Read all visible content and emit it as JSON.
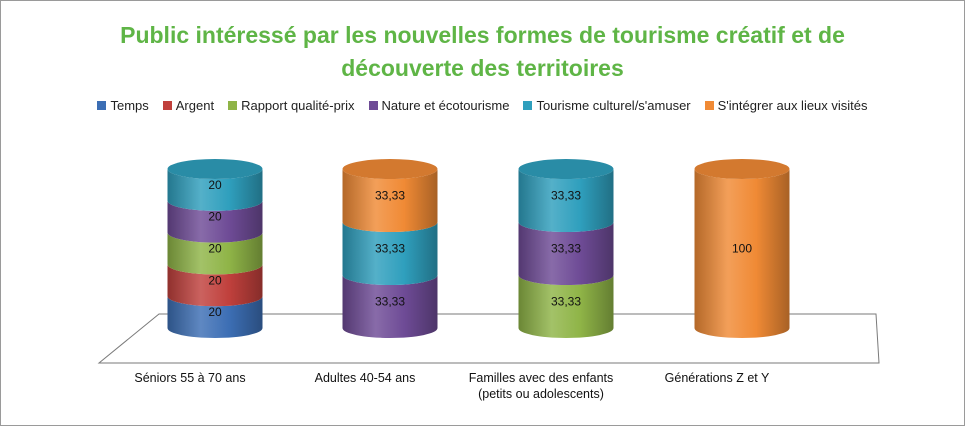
{
  "chart_data": {
    "type": "bar",
    "stacked": true,
    "style": "3d-cylinder",
    "title": "Public intéressé par les nouvelles formes de tourisme créatif et de découverte des territoires",
    "title_lines": [
      "Public intéressé par les nouvelles formes de tourisme créatif et de",
      "découverte des territoires"
    ],
    "legend_position": "top",
    "categories": [
      [
        "Séniors 55 à 70 ans"
      ],
      [
        "Adultes 40-54 ans"
      ],
      [
        "Familles avec des enfants",
        "(petits ou adolescents)"
      ],
      [
        "Générations Z et Y"
      ]
    ],
    "series": [
      {
        "name": "Temps",
        "color": "#3c6eb4",
        "values": [
          20,
          0,
          0,
          0
        ],
        "labels": [
          "20",
          "",
          "",
          ""
        ]
      },
      {
        "name": "Argent",
        "color": "#c0403c",
        "values": [
          20,
          0,
          0,
          0
        ],
        "labels": [
          "20",
          "",
          "",
          ""
        ]
      },
      {
        "name": "Rapport qualité-prix",
        "color": "#8fb447",
        "values": [
          20,
          0,
          33.33,
          0
        ],
        "labels": [
          "20",
          "",
          "33,33",
          ""
        ]
      },
      {
        "name": "Nature et écotourisme",
        "color": "#6e4b96",
        "values": [
          20,
          33.33,
          33.33,
          0
        ],
        "labels": [
          "20",
          "33,33",
          "33,33",
          ""
        ]
      },
      {
        "name": "Tourisme culturel/s'amuser",
        "color": "#2f9fbd",
        "values": [
          20,
          33.33,
          33.33,
          0
        ],
        "labels": [
          "20",
          "33,33",
          "33,33",
          ""
        ]
      },
      {
        "name": "S'intégrer aux lieux visités",
        "color": "#f08a35",
        "values": [
          0,
          33.33,
          0,
          100
        ],
        "labels": [
          "",
          "33,33",
          "",
          "100"
        ]
      }
    ],
    "ylim": [
      0,
      100
    ],
    "grid": false
  }
}
